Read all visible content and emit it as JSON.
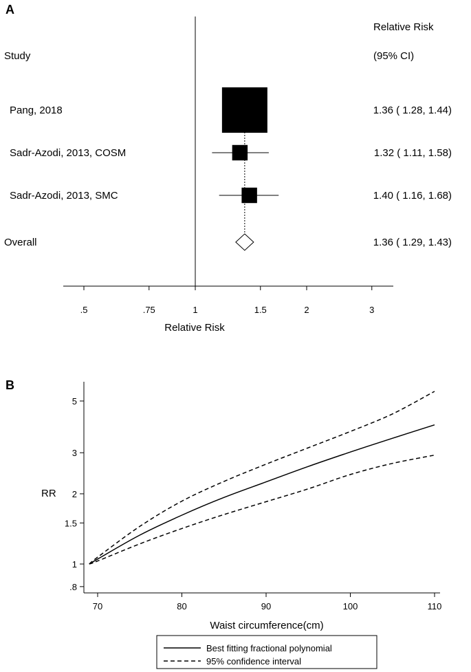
{
  "chart_data": [
    {
      "panel_label": "A",
      "type": "forest",
      "header": {
        "study": "Study",
        "rr_line1": "Relative Risk",
        "rr_line2": "(95% CI)"
      },
      "xlabel": "Relative Risk",
      "xscale": "log",
      "xticks": [
        0.5,
        0.75,
        1,
        1.5,
        2,
        3
      ],
      "xtick_labels": [
        ".5",
        ".75",
        "1",
        "1.5",
        "2",
        "3"
      ],
      "reference_line": 1,
      "studies": [
        {
          "label": "Pang, 2018",
          "rr": 1.36,
          "lo": 1.28,
          "hi": 1.44,
          "ci_text": "1.36 ( 1.28, 1.44)",
          "weight_rel": 1.0
        },
        {
          "label": "Sadr-Azodi, 2013, COSM",
          "rr": 1.32,
          "lo": 1.11,
          "hi": 1.58,
          "ci_text": "1.32 ( 1.11, 1.58)",
          "weight_rel": 0.34
        },
        {
          "label": "Sadr-Azodi, 2013, SMC",
          "rr": 1.4,
          "lo": 1.16,
          "hi": 1.68,
          "ci_text": "1.40 ( 1.16, 1.68)",
          "weight_rel": 0.34
        }
      ],
      "overall": {
        "label": "Overall",
        "rr": 1.36,
        "lo": 1.29,
        "hi": 1.43,
        "ci_text": "1.36 ( 1.29, 1.43)"
      }
    },
    {
      "panel_label": "B",
      "type": "line",
      "xlabel": "Waist circumference(cm)",
      "ylabel": "RR",
      "yscale": "log",
      "xlim": [
        69,
        110
      ],
      "ylim": [
        0.75,
        5.8
      ],
      "xticks": [
        70,
        80,
        90,
        100,
        110
      ],
      "yticks": [
        0.8,
        1,
        1.5,
        2,
        3,
        5
      ],
      "ytick_labels": [
        ".8",
        "1",
        "1.5",
        "2",
        "3",
        "5"
      ],
      "x": [
        69,
        70,
        75,
        80,
        85,
        90,
        95,
        100,
        105,
        110
      ],
      "series": [
        {
          "name": "Best fitting fractional polynomial",
          "style": "solid",
          "values": [
            1.0,
            1.05,
            1.33,
            1.62,
            1.93,
            2.25,
            2.62,
            3.02,
            3.46,
            3.95
          ]
        },
        {
          "name": "95% confidence interval",
          "style": "dashed",
          "values": [
            1.0,
            1.07,
            1.45,
            1.86,
            2.26,
            2.68,
            3.15,
            3.7,
            4.4,
            5.5
          ]
        },
        {
          "name": "",
          "style": "dashed",
          "values": [
            1.0,
            1.03,
            1.22,
            1.42,
            1.63,
            1.85,
            2.1,
            2.42,
            2.7,
            2.93
          ]
        }
      ],
      "legend_position": "bottom"
    }
  ]
}
